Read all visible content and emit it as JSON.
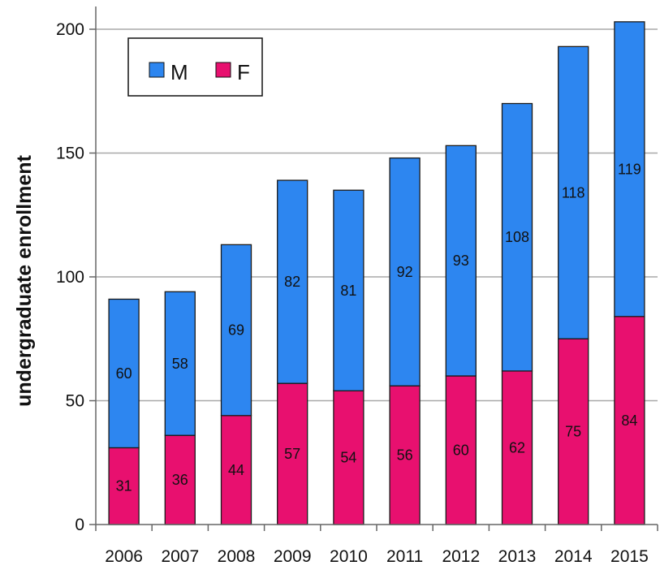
{
  "chart_data": {
    "type": "bar",
    "stacked": true,
    "title": "",
    "xlabel": "",
    "ylabel": "undergraduate enrollment",
    "ylim": [
      0,
      210
    ],
    "yticks": [
      0,
      50,
      100,
      150,
      200
    ],
    "grid": true,
    "legend_position": "top-left",
    "categories": [
      "2006",
      "2007",
      "2008",
      "2009",
      "2010",
      "2011",
      "2012",
      "2013",
      "2014",
      "2015"
    ],
    "series": [
      {
        "name": "F",
        "color": "#e8106f",
        "values": [
          31,
          36,
          44,
          57,
          54,
          56,
          60,
          62,
          75,
          84
        ]
      },
      {
        "name": "M",
        "color": "#2d86f0",
        "values": [
          60,
          58,
          69,
          82,
          81,
          92,
          93,
          108,
          118,
          119
        ]
      }
    ]
  },
  "legend": {
    "items": [
      {
        "label": "M",
        "color": "#2d86f0"
      },
      {
        "label": "F",
        "color": "#e8106f"
      }
    ]
  }
}
